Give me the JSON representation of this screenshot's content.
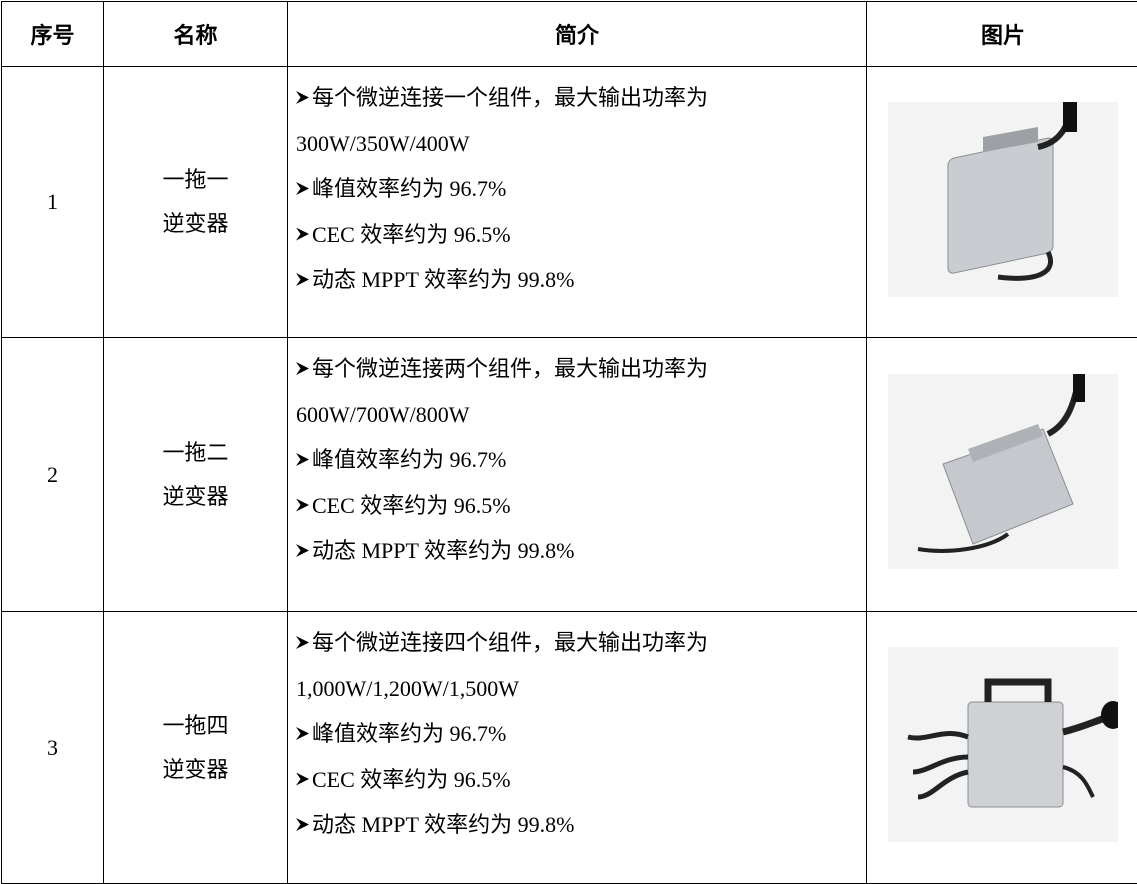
{
  "table": {
    "header": [
      "序号",
      "名称",
      "简介",
      "图片"
    ],
    "rows": [
      {
        "number": "1",
        "name": [
          "一拖一",
          "逆变器"
        ],
        "description": [
          {
            "lines": [
              "每个微逆连接一个组件，最大输出功率为",
              "300W/350W/400W"
            ]
          },
          {
            "lines": [
              "峰值效率约为 96.7%"
            ]
          },
          {
            "lines": [
              "CEC 效率约为 96.5%"
            ]
          },
          {
            "lines": [
              "动态 MPPT 效率约为 99.8%"
            ]
          }
        ]
      },
      {
        "number": "2",
        "name": [
          "一拖二",
          "逆变器"
        ],
        "description": [
          {
            "lines": [
              "每个微逆连接两个组件，最大输出功率为",
              "600W/700W/800W"
            ]
          },
          {
            "lines": [
              "峰值效率约为 96.7%"
            ]
          },
          {
            "lines": [
              "CEC 效率约为 96.5%"
            ]
          },
          {
            "lines": [
              "动态 MPPT 效率约为 99.8%"
            ]
          }
        ]
      },
      {
        "number": "3",
        "name": [
          "一拖四",
          "逆变器"
        ],
        "description": [
          {
            "lines": [
              "每个微逆连接四个组件，最大输出功率为",
              "1,000W/1,200W/1,500W"
            ]
          },
          {
            "lines": [
              "峰值效率约为 96.7%"
            ]
          },
          {
            "lines": [
              "CEC 效率约为 96.5%"
            ]
          },
          {
            "lines": [
              "动态 MPPT 效率约为 99.8%"
            ]
          }
        ]
      }
    ]
  }
}
